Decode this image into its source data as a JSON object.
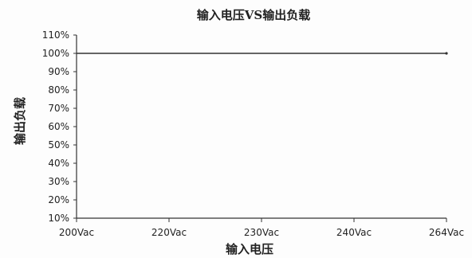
{
  "chart_data": {
    "type": "line",
    "title": "输入电压VS输出负载",
    "xlabel": "输入电压",
    "ylabel": "输出负载",
    "categories": [
      "200Vac",
      "220Vac",
      "230Vac",
      "240Vac",
      "264Vac"
    ],
    "y_ticks": [
      "10%",
      "20%",
      "30%",
      "40%",
      "50%",
      "60%",
      "70%",
      "80%",
      "90%",
      "100%",
      "110%"
    ],
    "ylim": [
      10,
      110
    ],
    "series": [
      {
        "values": [
          100,
          100,
          100,
          100,
          100
        ]
      }
    ],
    "grid": false,
    "legend": "none",
    "colors": {
      "axis": "#333333",
      "line": "#333333",
      "text": "#222222"
    }
  }
}
